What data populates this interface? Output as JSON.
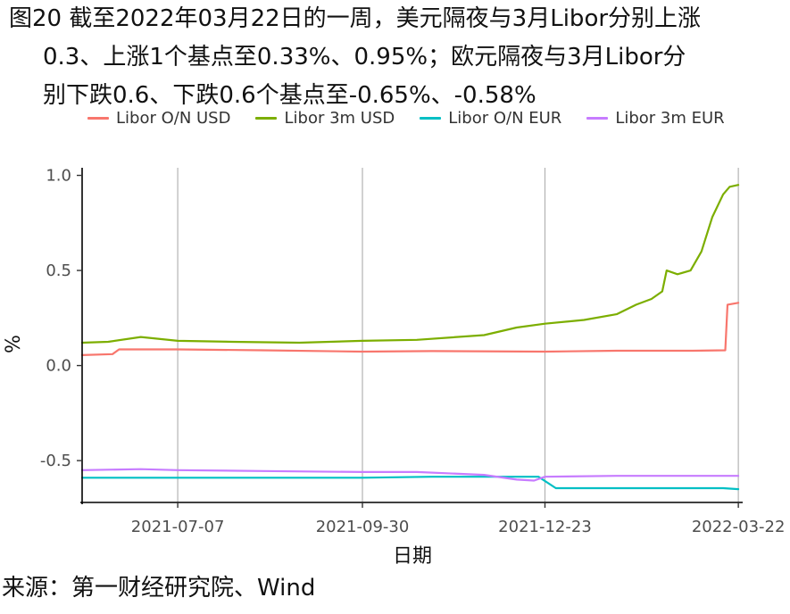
{
  "title_lines": [
    "图20  截至2022年03月22日的一周，美元隔夜与3月Libor分别上涨",
    "0.3、上涨1个基点至0.33%、0.95%；欧元隔夜与3月Libor分",
    "别下跌0.6、下跌0.6个基点至-0.65%、-0.58%"
  ],
  "source": "来源：第一财经研究院、Wind",
  "chart_data": {
    "type": "line",
    "xlabel": "日期",
    "ylabel": "%",
    "ylim": [
      -0.72,
      1.04
    ],
    "y_ticks": [
      -0.5,
      0.0,
      0.5,
      1.0
    ],
    "y_tick_labels": [
      "-0.5",
      "0.0",
      "0.5",
      "1.0"
    ],
    "x_range": [
      "2021-05-24",
      "2022-03-24"
    ],
    "x_ticks": [
      "2021-07-07",
      "2021-09-30",
      "2021-12-23",
      "2022-03-22"
    ],
    "grid": "vertical-major",
    "legend_position": "top",
    "series": [
      {
        "name": "Libor O/N USD",
        "color": "#F8766D",
        "points": [
          [
            "2021-05-24",
            0.055
          ],
          [
            "2021-06-07",
            0.06
          ],
          [
            "2021-06-10",
            0.085
          ],
          [
            "2021-07-07",
            0.085
          ],
          [
            "2021-08-15",
            0.08
          ],
          [
            "2021-09-30",
            0.073
          ],
          [
            "2021-11-01",
            0.076
          ],
          [
            "2021-12-23",
            0.073
          ],
          [
            "2022-01-25",
            0.078
          ],
          [
            "2022-03-01",
            0.078
          ],
          [
            "2022-03-16",
            0.08
          ],
          [
            "2022-03-17",
            0.32
          ],
          [
            "2022-03-22",
            0.33
          ]
        ]
      },
      {
        "name": "Libor 3m USD",
        "color": "#7CAE00",
        "points": [
          [
            "2021-05-24",
            0.12
          ],
          [
            "2021-06-05",
            0.125
          ],
          [
            "2021-06-20",
            0.15
          ],
          [
            "2021-07-07",
            0.13
          ],
          [
            "2021-08-01",
            0.125
          ],
          [
            "2021-09-01",
            0.12
          ],
          [
            "2021-09-30",
            0.13
          ],
          [
            "2021-10-25",
            0.135
          ],
          [
            "2021-11-25",
            0.16
          ],
          [
            "2021-12-10",
            0.2
          ],
          [
            "2021-12-23",
            0.22
          ],
          [
            "2022-01-10",
            0.24
          ],
          [
            "2022-01-25",
            0.27
          ],
          [
            "2022-02-03",
            0.32
          ],
          [
            "2022-02-10",
            0.35
          ],
          [
            "2022-02-15",
            0.39
          ],
          [
            "2022-02-17",
            0.5
          ],
          [
            "2022-02-22",
            0.48
          ],
          [
            "2022-02-28",
            0.5
          ],
          [
            "2022-03-05",
            0.6
          ],
          [
            "2022-03-10",
            0.78
          ],
          [
            "2022-03-15",
            0.9
          ],
          [
            "2022-03-18",
            0.94
          ],
          [
            "2022-03-22",
            0.95
          ]
        ]
      },
      {
        "name": "Libor O/N EUR",
        "color": "#00BFC4",
        "points": [
          [
            "2021-05-24",
            -0.59
          ],
          [
            "2021-07-07",
            -0.59
          ],
          [
            "2021-08-15",
            -0.59
          ],
          [
            "2021-09-30",
            -0.59
          ],
          [
            "2021-11-01",
            -0.585
          ],
          [
            "2021-12-20",
            -0.585
          ],
          [
            "2021-12-28",
            -0.645
          ],
          [
            "2022-02-01",
            -0.645
          ],
          [
            "2022-03-15",
            -0.645
          ],
          [
            "2022-03-22",
            -0.65
          ]
        ]
      },
      {
        "name": "Libor 3m EUR",
        "color": "#C77CFF",
        "points": [
          [
            "2021-05-24",
            -0.55
          ],
          [
            "2021-06-20",
            -0.545
          ],
          [
            "2021-07-07",
            -0.55
          ],
          [
            "2021-08-15",
            -0.555
          ],
          [
            "2021-09-30",
            -0.56
          ],
          [
            "2021-10-25",
            -0.56
          ],
          [
            "2021-11-25",
            -0.575
          ],
          [
            "2021-12-10",
            -0.6
          ],
          [
            "2021-12-18",
            -0.605
          ],
          [
            "2021-12-23",
            -0.585
          ],
          [
            "2022-01-25",
            -0.58
          ],
          [
            "2022-03-22",
            -0.58
          ]
        ]
      }
    ]
  }
}
